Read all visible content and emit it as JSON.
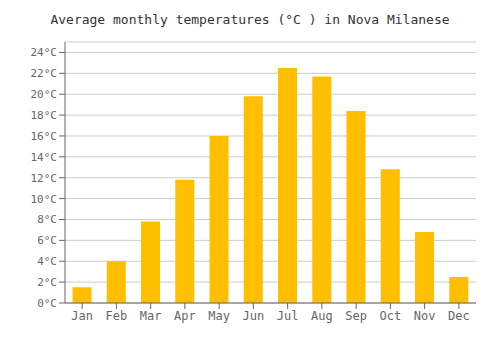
{
  "chart_data": {
    "type": "bar",
    "title": "Average monthly temperatures (°C ) in Nova Milanese",
    "categories": [
      "Jan",
      "Feb",
      "Mar",
      "Apr",
      "May",
      "Jun",
      "Jul",
      "Aug",
      "Sep",
      "Oct",
      "Nov",
      "Dec"
    ],
    "values": [
      1.5,
      4.0,
      7.8,
      11.8,
      16.0,
      19.8,
      22.5,
      21.7,
      18.4,
      12.8,
      6.8,
      2.5
    ],
    "color": "#FFBE00",
    "ylim": [
      0,
      25
    ],
    "yticks": [
      {
        "value": 0,
        "label": "0°C"
      },
      {
        "value": 2,
        "label": "2°C"
      },
      {
        "value": 4,
        "label": "4°C"
      },
      {
        "value": 6,
        "label": "6°C"
      },
      {
        "value": 8,
        "label": "8°C"
      },
      {
        "value": 10,
        "label": "10°C"
      },
      {
        "value": 12,
        "label": "12°C"
      },
      {
        "value": 14,
        "label": "14°C"
      },
      {
        "value": 16,
        "label": "16°C"
      },
      {
        "value": 18,
        "label": "18°C"
      },
      {
        "value": 20,
        "label": "20°C"
      },
      {
        "value": 22,
        "label": "22°C"
      },
      {
        "value": 24,
        "label": "24°C"
      }
    ],
    "grid": true
  }
}
